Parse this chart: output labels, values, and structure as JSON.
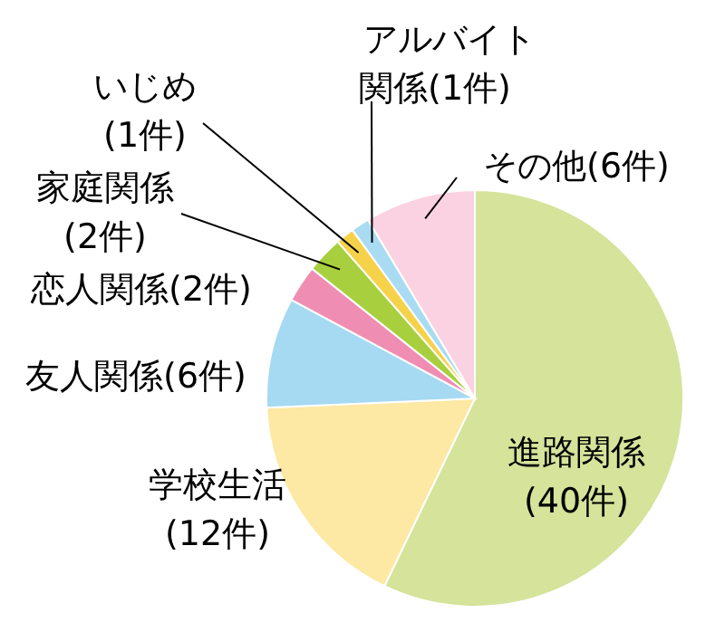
{
  "chart_data": {
    "type": "pie",
    "categories": [
      "進路関係",
      "学校生活",
      "友人関係",
      "恋人関係",
      "家庭関係",
      "いじめ",
      "アルバイト関係",
      "その他"
    ],
    "values": [
      40,
      12,
      6,
      2,
      2,
      1,
      1,
      6
    ],
    "value_labels": [
      "(40件)",
      "(12件)",
      "(6件)",
      "(2件)",
      "(2件)",
      "(1件)",
      "(1件)",
      "(6件)"
    ],
    "colors": [
      "#d5e39b",
      "#fde8a4",
      "#a6d9f2",
      "#f08db2",
      "#a8cf3e",
      "#f6d24a",
      "#a9dcf2",
      "#fbd2e1"
    ]
  }
}
